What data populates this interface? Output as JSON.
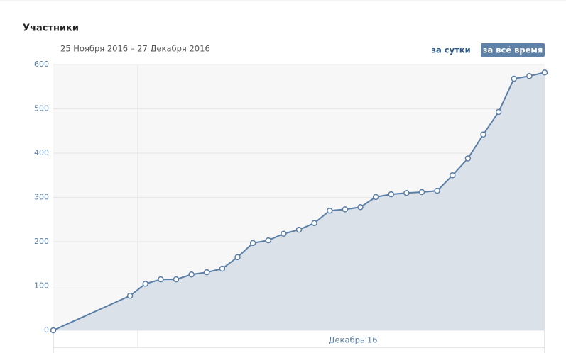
{
  "chart_data": {
    "type": "line",
    "title": "Участники",
    "subtitle": "25 Ноября 2016 – 27 Декабря 2016",
    "buttons": [
      "за сутки",
      "за всё время"
    ],
    "active_button": 1,
    "x_axis_label": "Декабрь'16",
    "x": [
      0,
      5,
      6,
      7,
      8,
      9,
      10,
      11,
      12,
      13,
      14,
      15,
      16,
      17,
      18,
      19,
      20,
      21,
      22,
      23,
      24,
      25,
      26,
      27,
      28,
      29,
      30,
      31,
      32
    ],
    "xlim": [
      0,
      32
    ],
    "values": [
      0,
      78,
      105,
      115,
      115,
      126,
      131,
      139,
      165,
      197,
      203,
      218,
      227,
      242,
      270,
      273,
      278,
      301,
      307,
      310,
      312,
      315,
      350,
      388,
      442,
      493,
      568,
      574,
      582
    ],
    "color": "#5a7ea6",
    "ylim": [
      0,
      600
    ],
    "yticks": [
      0,
      100,
      200,
      300,
      400,
      500,
      600
    ],
    "grid": true
  }
}
